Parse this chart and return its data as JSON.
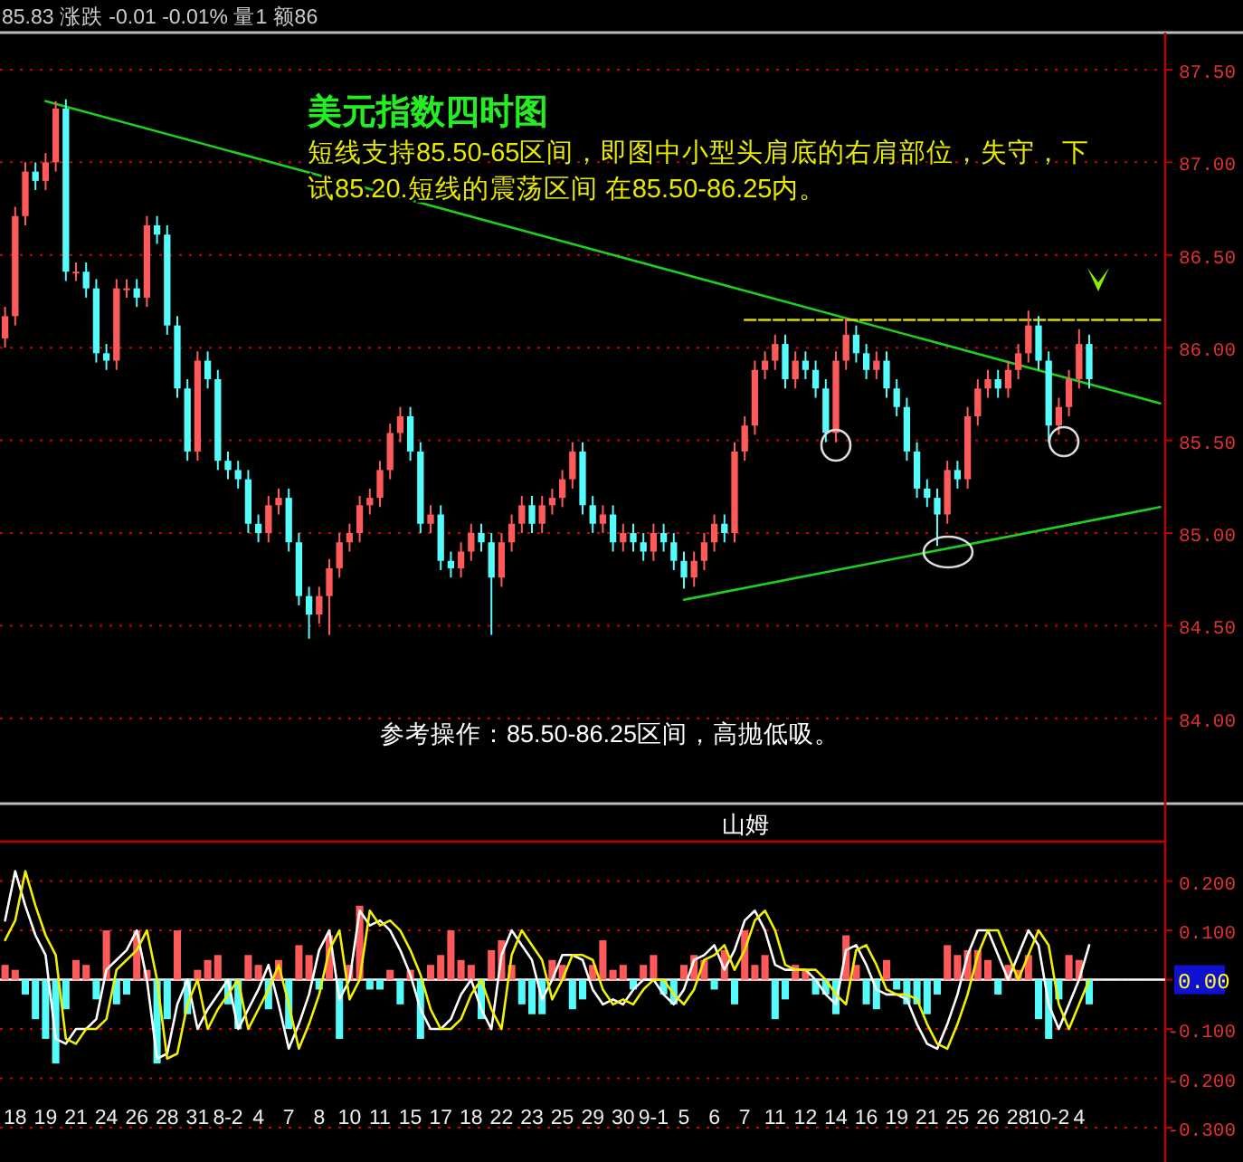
{
  "chart_data": [
    {
      "type": "candlestick",
      "title": "美元指数四时图",
      "subtitle": "短线支持85.50-65区间，即图中小型头肩底的右肩部位，失守，下试85.20.短线的震荡区间 在85.50-86.25内。",
      "annotations": [
        "85.83 涨跌 -0.01 -0.01% 量1 额86",
        "参考操作：85.50-86.25区间，高抛低吸。"
      ],
      "ohlc": [
        [
          86.05,
          86.22,
          86.0,
          86.17
        ],
        [
          86.17,
          86.76,
          86.12,
          86.71
        ],
        [
          86.71,
          87.0,
          86.66,
          86.95
        ],
        [
          86.95,
          87.0,
          86.85,
          86.9
        ],
        [
          86.9,
          87.05,
          86.85,
          87.0
        ],
        [
          87.0,
          87.33,
          86.95,
          87.29
        ],
        [
          87.29,
          87.34,
          86.36,
          86.41
        ],
        [
          86.41,
          86.46,
          86.36,
          86.41
        ],
        [
          86.41,
          86.46,
          86.27,
          86.32
        ],
        [
          86.32,
          86.37,
          85.92,
          85.97
        ],
        [
          85.97,
          86.02,
          85.88,
          85.93
        ],
        [
          85.93,
          86.37,
          85.88,
          86.32
        ],
        [
          86.32,
          86.37,
          86.27,
          86.32
        ],
        [
          86.32,
          86.37,
          86.22,
          86.27
        ],
        [
          86.27,
          86.71,
          86.22,
          86.66
        ],
        [
          86.66,
          86.71,
          86.56,
          86.61
        ],
        [
          86.61,
          86.66,
          86.07,
          86.12
        ],
        [
          86.12,
          86.17,
          85.73,
          85.78
        ],
        [
          85.78,
          85.83,
          85.39,
          85.44
        ],
        [
          85.44,
          85.98,
          85.39,
          85.93
        ],
        [
          85.93,
          85.98,
          85.78,
          85.83
        ],
        [
          85.83,
          85.88,
          85.34,
          85.39
        ],
        [
          85.39,
          85.44,
          85.29,
          85.34
        ],
        [
          85.34,
          85.39,
          85.24,
          85.29
        ],
        [
          85.29,
          85.34,
          85.0,
          85.05
        ],
        [
          85.05,
          85.1,
          84.95,
          85.0
        ],
        [
          85.0,
          85.2,
          84.95,
          85.15
        ],
        [
          85.15,
          85.24,
          85.1,
          85.19
        ],
        [
          85.19,
          85.24,
          84.9,
          84.95
        ],
        [
          84.95,
          85.0,
          84.61,
          84.66
        ],
        [
          84.66,
          84.71,
          84.43,
          84.56
        ],
        [
          84.56,
          84.71,
          84.51,
          84.66
        ],
        [
          84.66,
          84.86,
          84.45,
          84.81
        ],
        [
          84.81,
          85.0,
          84.76,
          84.95
        ],
        [
          84.95,
          85.05,
          84.9,
          85.0
        ],
        [
          85.0,
          85.2,
          84.95,
          85.15
        ],
        [
          85.15,
          85.24,
          85.1,
          85.19
        ],
        [
          85.19,
          85.39,
          85.14,
          85.34
        ],
        [
          85.34,
          85.59,
          85.29,
          85.54
        ],
        [
          85.54,
          85.68,
          85.49,
          85.63
        ],
        [
          85.63,
          85.68,
          85.39,
          85.44
        ],
        [
          85.44,
          85.49,
          85.0,
          85.05
        ],
        [
          85.05,
          85.15,
          85.0,
          85.1
        ],
        [
          85.1,
          85.15,
          84.8,
          84.85
        ],
        [
          84.85,
          84.9,
          84.76,
          84.81
        ],
        [
          84.81,
          84.95,
          84.76,
          84.9
        ],
        [
          84.9,
          85.05,
          84.85,
          85.0
        ],
        [
          85.0,
          85.05,
          84.9,
          84.95
        ],
        [
          84.95,
          85.0,
          84.45,
          84.76
        ],
        [
          84.76,
          85.0,
          84.71,
          84.95
        ],
        [
          84.95,
          85.1,
          84.9,
          85.05
        ],
        [
          85.05,
          85.2,
          85.0,
          85.15
        ],
        [
          85.15,
          85.2,
          85.0,
          85.05
        ],
        [
          85.05,
          85.2,
          85.0,
          85.15
        ],
        [
          85.15,
          85.24,
          85.1,
          85.19
        ],
        [
          85.19,
          85.34,
          85.14,
          85.29
        ],
        [
          85.29,
          85.49,
          85.24,
          85.44
        ],
        [
          85.44,
          85.49,
          85.1,
          85.15
        ],
        [
          85.15,
          85.2,
          85.0,
          85.05
        ],
        [
          85.05,
          85.15,
          85.0,
          85.1
        ],
        [
          85.1,
          85.15,
          84.9,
          84.95
        ],
        [
          84.95,
          85.05,
          84.9,
          85.0
        ],
        [
          85.0,
          85.05,
          84.9,
          84.95
        ],
        [
          84.95,
          85.0,
          84.85,
          84.9
        ],
        [
          84.9,
          85.05,
          84.85,
          85.0
        ],
        [
          85.0,
          85.05,
          84.9,
          84.95
        ],
        [
          84.95,
          85.0,
          84.8,
          84.85
        ],
        [
          84.85,
          84.9,
          84.7,
          84.76
        ],
        [
          84.76,
          84.9,
          84.71,
          84.85
        ],
        [
          84.85,
          85.0,
          84.8,
          84.95
        ],
        [
          84.95,
          85.1,
          84.9,
          85.05
        ],
        [
          85.05,
          85.1,
          84.95,
          85.0
        ],
        [
          85.0,
          85.49,
          84.95,
          85.44
        ],
        [
          85.44,
          85.63,
          85.39,
          85.58
        ],
        [
          85.58,
          85.93,
          85.53,
          85.88
        ],
        [
          85.88,
          85.98,
          85.83,
          85.93
        ],
        [
          85.93,
          86.07,
          85.88,
          86.02
        ],
        [
          86.02,
          86.07,
          85.78,
          85.83
        ],
        [
          85.83,
          85.98,
          85.78,
          85.93
        ],
        [
          85.93,
          85.98,
          85.83,
          85.88
        ],
        [
          85.88,
          85.93,
          85.73,
          85.78
        ],
        [
          85.78,
          85.83,
          85.49,
          85.54
        ],
        [
          85.54,
          85.98,
          85.49,
          85.93
        ],
        [
          85.93,
          86.16,
          85.88,
          86.07
        ],
        [
          86.07,
          86.12,
          85.92,
          85.97
        ],
        [
          85.97,
          86.02,
          85.83,
          85.88
        ],
        [
          85.88,
          85.98,
          85.83,
          85.93
        ],
        [
          85.93,
          85.98,
          85.73,
          85.78
        ],
        [
          85.78,
          85.83,
          85.63,
          85.68
        ],
        [
          85.68,
          85.73,
          85.39,
          85.44
        ],
        [
          85.44,
          85.49,
          85.19,
          85.24
        ],
        [
          85.24,
          85.29,
          85.14,
          85.19
        ],
        [
          85.19,
          85.24,
          84.93,
          85.1
        ],
        [
          85.1,
          85.39,
          85.05,
          85.34
        ],
        [
          85.34,
          85.39,
          85.24,
          85.29
        ],
        [
          85.29,
          85.68,
          85.24,
          85.63
        ],
        [
          85.63,
          85.83,
          85.58,
          85.78
        ],
        [
          85.78,
          85.88,
          85.73,
          85.83
        ],
        [
          85.83,
          85.88,
          85.73,
          85.78
        ],
        [
          85.78,
          85.93,
          85.73,
          85.88
        ],
        [
          85.88,
          86.02,
          85.83,
          85.97
        ],
        [
          85.97,
          86.2,
          85.92,
          86.12
        ],
        [
          86.12,
          86.17,
          85.88,
          85.93
        ],
        [
          85.93,
          85.98,
          85.49,
          85.58
        ],
        [
          85.58,
          85.73,
          85.53,
          85.68
        ],
        [
          85.68,
          85.88,
          85.63,
          85.83
        ],
        [
          85.83,
          86.1,
          85.78,
          86.02
        ],
        [
          86.02,
          86.07,
          85.78,
          85.83
        ],
        null,
        null,
        null,
        null,
        null,
        null,
        null
      ],
      "colors": [
        "#ff5a5a",
        "#ff5a5a",
        "#ff5a5a",
        "#54fcfc",
        "#ff5a5a",
        "#ff5a5a",
        "#54fcfc",
        "#ff5a5a",
        "#54fcfc",
        "#54fcfc",
        "#54fcfc",
        "#ff5a5a",
        "#ff5a5a",
        "#54fcfc",
        "#ff5a5a",
        "#54fcfc",
        "#54fcfc",
        "#54fcfc",
        "#54fcfc",
        "#ff5a5a",
        "#54fcfc",
        "#54fcfc",
        "#54fcfc",
        "#54fcfc",
        "#54fcfc",
        "#54fcfc",
        "#ff5a5a",
        "#ff5a5a",
        "#54fcfc",
        "#54fcfc",
        "#54fcfc",
        "#ff5a5a",
        "#ff5a5a",
        "#ff5a5a",
        "#ff5a5a",
        "#ff5a5a",
        "#ff5a5a",
        "#ff5a5a",
        "#ff5a5a",
        "#ff5a5a",
        "#54fcfc",
        "#54fcfc",
        "#ff5a5a",
        "#54fcfc",
        "#54fcfc",
        "#ff5a5a",
        "#ff5a5a",
        "#54fcfc",
        "#54fcfc",
        "#ff5a5a",
        "#ff5a5a",
        "#ff5a5a",
        "#54fcfc",
        "#ff5a5a",
        "#ff5a5a",
        "#ff5a5a",
        "#ff5a5a",
        "#54fcfc",
        "#54fcfc",
        "#ff5a5a",
        "#54fcfc",
        "#ff5a5a",
        "#54fcfc",
        "#54fcfc",
        "#ff5a5a",
        "#54fcfc",
        "#54fcfc",
        "#54fcfc",
        "#ff5a5a",
        "#ff5a5a",
        "#ff5a5a",
        "#54fcfc",
        "#ff5a5a",
        "#ff5a5a",
        "#ff5a5a",
        "#ff5a5a",
        "#ff5a5a",
        "#54fcfc",
        "#ff5a5a",
        "#54fcfc",
        "#54fcfc",
        "#54fcfc",
        "#ff5a5a",
        "#ff5a5a",
        "#54fcfc",
        "#54fcfc",
        "#ff5a5a",
        "#54fcfc",
        "#54fcfc",
        "#54fcfc",
        "#54fcfc",
        "#54fcfc",
        "#54fcfc",
        "#ff5a5a",
        "#54fcfc",
        "#ff5a5a",
        "#ff5a5a",
        "#ff5a5a",
        "#54fcfc",
        "#ff5a5a",
        "#ff5a5a",
        "#ff5a5a",
        "#54fcfc",
        "#54fcfc",
        "#ff5a5a",
        "#ff5a5a",
        "#ff5a5a",
        "#54fcfc",
        null,
        null,
        null,
        null,
        null,
        null,
        null
      ],
      "series": [
        {
          "type": "line",
          "color": "#1fcf1f",
          "values": [
            null,
            null,
            null,
            null,
            87.33,
            null,
            null,
            null,
            null,
            null,
            null,
            null,
            null,
            null,
            null,
            null,
            null,
            null,
            null,
            null,
            null,
            null,
            null,
            null,
            null,
            null,
            null,
            null,
            null,
            null,
            null,
            null,
            null,
            null,
            null,
            null,
            null,
            null,
            null,
            null,
            null,
            null,
            null,
            null,
            null,
            null,
            null,
            null,
            null,
            null,
            null,
            null,
            null,
            null,
            null,
            null,
            null,
            null,
            null,
            null,
            null,
            null,
            null,
            null,
            null,
            null,
            null,
            null,
            null,
            null,
            null,
            null,
            null,
            null,
            null,
            null,
            null,
            null,
            null,
            null,
            null,
            null,
            null,
            null,
            null,
            null,
            null,
            null,
            null,
            null,
            null,
            null,
            null,
            null,
            null,
            null,
            null,
            null,
            null,
            null,
            null,
            null,
            null,
            null,
            null,
            null,
            null,
            null,
            null,
            null,
            null,
            null,
            null,
            null,
            85.7
          ]
        },
        {
          "type": "line",
          "color": "#1fcf1f",
          "values": [
            null,
            null,
            null,
            null,
            null,
            null,
            null,
            null,
            null,
            null,
            null,
            null,
            null,
            null,
            null,
            null,
            null,
            null,
            null,
            null,
            null,
            null,
            null,
            null,
            null,
            null,
            null,
            null,
            null,
            null,
            null,
            null,
            null,
            null,
            null,
            null,
            null,
            null,
            null,
            null,
            null,
            null,
            null,
            null,
            null,
            null,
            null,
            null,
            null,
            null,
            null,
            null,
            null,
            null,
            null,
            null,
            null,
            null,
            null,
            null,
            null,
            null,
            null,
            null,
            null,
            null,
            null,
            84.64,
            null,
            null,
            null,
            null,
            null,
            null,
            null,
            null,
            null,
            null,
            null,
            null,
            null,
            null,
            null,
            null,
            null,
            null,
            null,
            null,
            null,
            null,
            null,
            null,
            null,
            null,
            null,
            null,
            null,
            null,
            null,
            null,
            null,
            null,
            null,
            null,
            null,
            null,
            null,
            null,
            null,
            null,
            null,
            null,
            null,
            null,
            85.14
          ]
        },
        {
          "type": "line",
          "color": "#d8d800",
          "line_style": "dashed",
          "values": [
            null,
            null,
            null,
            null,
            null,
            null,
            null,
            null,
            null,
            null,
            null,
            null,
            null,
            null,
            null,
            null,
            null,
            null,
            null,
            null,
            null,
            null,
            null,
            null,
            null,
            null,
            null,
            null,
            null,
            null,
            null,
            null,
            null,
            null,
            null,
            null,
            null,
            null,
            null,
            null,
            null,
            null,
            null,
            null,
            null,
            null,
            null,
            null,
            null,
            null,
            null,
            null,
            null,
            null,
            null,
            null,
            null,
            null,
            null,
            null,
            null,
            null,
            null,
            null,
            null,
            null,
            null,
            null,
            null,
            null,
            null,
            null,
            null,
            86.15,
            null,
            null,
            null,
            null,
            null,
            null,
            null,
            null,
            null,
            null,
            null,
            null,
            null,
            null,
            null,
            null,
            null,
            null,
            null,
            null,
            null,
            null,
            null,
            null,
            null,
            null,
            null,
            null,
            null,
            null,
            null,
            null,
            null,
            null,
            null,
            null,
            null,
            null,
            null,
            null,
            86.15
          ]
        }
      ],
      "ylim": [
        83.55,
        87.7
      ],
      "yticks": [
        {
          "value": 84,
          "label": "84.00"
        },
        {
          "value": 84.5,
          "label": "84.50"
        },
        {
          "value": 85,
          "label": "85.00"
        },
        {
          "value": 85.5,
          "label": "85.50"
        },
        {
          "value": 86,
          "label": "86.00"
        },
        {
          "value": 86.5,
          "label": "86.50"
        },
        {
          "value": 87,
          "label": "87.00"
        },
        {
          "value": 87.5,
          "label": "87.50"
        }
      ],
      "grid": "y",
      "tick_labels": "y"
    },
    {
      "type": "bar",
      "title": "山姆",
      "annotations": [
        "0.00"
      ],
      "categories": [
        null,
        "18",
        null,
        null,
        "19",
        null,
        null,
        "21",
        null,
        null,
        "24",
        null,
        null,
        "26",
        null,
        null,
        "28",
        null,
        null,
        "31",
        null,
        null,
        "8-2",
        null,
        null,
        "4",
        null,
        null,
        "7",
        null,
        null,
        "8",
        null,
        null,
        "10",
        null,
        null,
        "11",
        null,
        null,
        "15",
        null,
        null,
        "17",
        null,
        null,
        "18",
        null,
        null,
        "22",
        null,
        null,
        "23",
        null,
        null,
        "25",
        null,
        null,
        "29",
        null,
        null,
        "30",
        null,
        null,
        "9-1",
        null,
        null,
        "5",
        null,
        null,
        "6",
        null,
        null,
        "7",
        null,
        null,
        "11",
        null,
        null,
        "12",
        null,
        null,
        "14",
        null,
        null,
        "16",
        null,
        null,
        "19",
        null,
        null,
        "21",
        null,
        null,
        "25",
        null,
        null,
        "26",
        null,
        null,
        "28",
        null,
        null,
        "10-2",
        null,
        null,
        "4",
        null,
        null,
        null,
        null,
        null,
        null,
        null,
        null
      ],
      "series": [
        {
          "color": "#ff5a5a",
          "values": [
            0.03,
            0.02,
            null,
            null,
            null,
            null,
            null,
            0.04,
            0.03,
            null,
            0.1,
            null,
            null,
            0.1,
            0.02,
            null,
            null,
            0.1,
            null,
            0.02,
            0.04,
            0.05,
            null,
            null,
            0.05,
            0.03,
            null,
            0.04,
            null,
            0.07,
            0.05,
            null,
            0.09,
            null,
            0.03,
            0.15,
            null,
            null,
            0.02,
            null,
            0.02,
            null,
            0.03,
            0.05,
            0.1,
            0.04,
            0.03,
            null,
            0.06,
            0.08,
            0.03,
            null,
            null,
            null,
            0.04,
            0.03,
            null,
            null,
            0.03,
            0.08,
            0.02,
            0.03,
            null,
            0.03,
            0.05,
            null,
            null,
            0.03,
            0.05,
            0.04,
            null,
            0.06,
            null,
            0.1,
            0.03,
            0.05,
            null,
            null,
            0.03,
            0.02,
            null,
            null,
            null,
            0.09,
            0.03,
            null,
            null,
            0.04,
            null,
            null,
            null,
            null,
            null,
            0.07,
            0.05,
            0.06,
            0.06,
            0.04,
            null,
            0.03,
            0.02,
            0.05,
            null,
            null,
            null,
            0.05,
            0.04,
            null,
            null,
            null,
            null,
            null,
            null,
            null,
            null
          ]
        },
        {
          "color": "#54fcfc",
          "values": [
            null,
            null,
            -0.03,
            -0.08,
            -0.12,
            -0.17,
            -0.06,
            null,
            null,
            -0.04,
            null,
            -0.05,
            -0.03,
            null,
            null,
            -0.17,
            -0.08,
            null,
            -0.07,
            null,
            null,
            null,
            -0.05,
            -0.1,
            null,
            null,
            -0.06,
            null,
            -0.1,
            null,
            null,
            -0.02,
            null,
            -0.12,
            null,
            null,
            -0.02,
            -0.02,
            null,
            -0.05,
            null,
            -0.12,
            null,
            null,
            null,
            null,
            null,
            -0.08,
            null,
            null,
            null,
            -0.05,
            -0.07,
            -0.07,
            null,
            null,
            -0.06,
            -0.04,
            null,
            null,
            null,
            null,
            -0.02,
            null,
            null,
            -0.03,
            -0.05,
            null,
            null,
            null,
            -0.02,
            null,
            -0.05,
            null,
            null,
            null,
            -0.08,
            -0.04,
            null,
            null,
            -0.03,
            -0.03,
            -0.07,
            null,
            null,
            -0.05,
            -0.06,
            null,
            -0.02,
            -0.05,
            -0.05,
            -0.07,
            -0.03,
            null,
            null,
            null,
            null,
            null,
            -0.03,
            null,
            null,
            null,
            -0.08,
            -0.12,
            -0.04,
            null,
            null,
            -0.05,
            null,
            null,
            null,
            null,
            null,
            null,
            null
          ]
        },
        {
          "type": "line",
          "color": "#ffffff",
          "values": [
            0.12,
            0.22,
            0.15,
            0.09,
            0.05,
            -0.12,
            -0.13,
            -0.1,
            -0.1,
            -0.08,
            0.02,
            0.04,
            0.06,
            0.1,
            0.0,
            -0.16,
            -0.15,
            -0.05,
            0.0,
            -0.1,
            -0.06,
            -0.03,
            0.0,
            -0.1,
            -0.06,
            -0.02,
            0.03,
            -0.05,
            -0.14,
            -0.09,
            -0.03,
            0.06,
            0.1,
            -0.04,
            0.0,
            0.14,
            0.11,
            0.12,
            0.1,
            0.06,
            0.01,
            -0.06,
            -0.1,
            -0.1,
            -0.08,
            -0.03,
            0.0,
            -0.06,
            -0.1,
            0.05,
            0.1,
            0.07,
            0.04,
            -0.04,
            0.0,
            0.05,
            0.05,
            0.04,
            -0.02,
            -0.05,
            -0.04,
            -0.05,
            -0.02,
            0.0,
            0.0,
            -0.03,
            -0.05,
            -0.02,
            0.04,
            0.05,
            0.07,
            0.02,
            0.06,
            0.12,
            0.14,
            0.1,
            0.03,
            0.02,
            0.02,
            0.02,
            0.0,
            -0.03,
            -0.05,
            0.06,
            0.07,
            0.03,
            -0.02,
            -0.03,
            -0.03,
            -0.04,
            -0.09,
            -0.13,
            -0.14,
            -0.09,
            -0.03,
            0.05,
            0.1,
            0.1,
            0.05,
            0.0,
            0.05,
            0.1,
            0.07,
            -0.05,
            -0.1,
            -0.05,
            0.0,
            0.07,
            null,
            null,
            null,
            null,
            null,
            null,
            null
          ]
        },
        {
          "type": "line",
          "color": "#f0f000",
          "values": [
            0.08,
            0.12,
            0.22,
            0.15,
            0.09,
            0.05,
            -0.12,
            -0.13,
            -0.1,
            -0.1,
            -0.08,
            0.02,
            0.04,
            0.06,
            0.1,
            0.0,
            -0.16,
            -0.15,
            -0.05,
            0.0,
            -0.1,
            -0.06,
            -0.03,
            0.0,
            -0.1,
            -0.06,
            -0.02,
            0.03,
            -0.05,
            -0.14,
            -0.09,
            -0.03,
            0.06,
            0.1,
            -0.04,
            0.0,
            0.14,
            0.11,
            0.12,
            0.1,
            0.06,
            0.01,
            -0.06,
            -0.1,
            -0.1,
            -0.08,
            -0.03,
            0.0,
            -0.06,
            -0.1,
            0.05,
            0.1,
            0.07,
            0.04,
            -0.04,
            0.0,
            0.05,
            0.05,
            0.04,
            -0.02,
            -0.05,
            -0.04,
            -0.05,
            -0.02,
            0.0,
            0.0,
            -0.03,
            -0.05,
            -0.02,
            0.04,
            0.05,
            0.07,
            0.02,
            0.06,
            0.12,
            0.14,
            0.1,
            0.03,
            0.02,
            0.02,
            0.02,
            0.0,
            -0.03,
            -0.05,
            0.06,
            0.07,
            0.03,
            -0.02,
            -0.03,
            -0.03,
            -0.04,
            -0.09,
            -0.13,
            -0.14,
            -0.09,
            -0.03,
            0.05,
            0.1,
            0.1,
            0.05,
            0.0,
            0.05,
            0.1,
            0.07,
            -0.05,
            -0.1,
            -0.05,
            0.0,
            null,
            null,
            null,
            null,
            null,
            null,
            null
          ]
        }
      ],
      "ref_lines": [
        {
          "axis": "y",
          "value": 0,
          "color": "#ffffff"
        }
      ],
      "ylim": [
        -0.3,
        0.28
      ],
      "yticks": [
        {
          "value": -0.3,
          "label": "-0.300"
        },
        {
          "value": -0.2,
          "label": "-0.200"
        },
        {
          "value": -0.1,
          "label": "-0.100"
        },
        {
          "value": 0,
          "label": null
        },
        {
          "value": 0.1,
          "label": "0.100"
        },
        {
          "value": 0.2,
          "label": "0.200"
        }
      ],
      "grid": "y"
    }
  ]
}
